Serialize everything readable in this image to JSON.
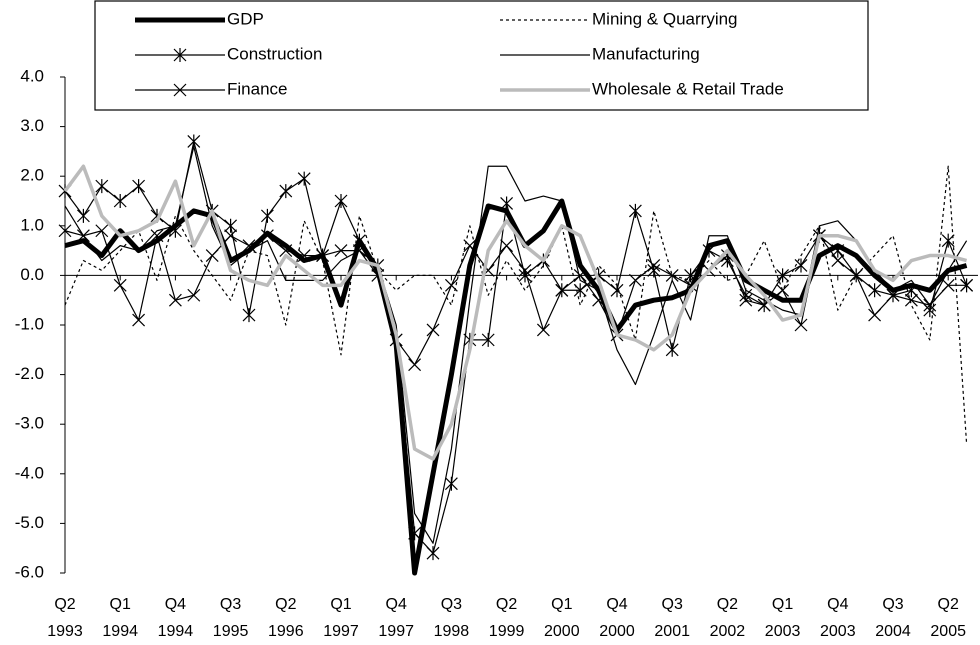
{
  "chart_data": {
    "type": "line",
    "categories": [
      "Q2 1993",
      null,
      null,
      "Q1 1994",
      null,
      null,
      "Q4 1994",
      null,
      null,
      "Q3 1995",
      null,
      null,
      "Q2 1996",
      null,
      null,
      "Q1 1997",
      null,
      null,
      "Q4 1997",
      null,
      null,
      "Q3 1998",
      null,
      null,
      "Q2 1999",
      null,
      null,
      "Q1 2000",
      null,
      null,
      "Q4 2000",
      null,
      null,
      "Q3 2001",
      null,
      null,
      "Q2 2002",
      null,
      null,
      "Q1 2003",
      null,
      null,
      "Q4 2003",
      null,
      null,
      "Q3 2004",
      null,
      null,
      "Q2 2005",
      null
    ],
    "ylim": [
      -6,
      4
    ],
    "yticks": [
      {
        "value": -6,
        "label": "-6.0"
      },
      {
        "value": -5,
        "label": "-5.0"
      },
      {
        "value": -4,
        "label": "-4.0"
      },
      {
        "value": -3,
        "label": "-3.0"
      },
      {
        "value": -2,
        "label": "-2.0"
      },
      {
        "value": -1,
        "label": "-1.0"
      },
      {
        "value": 0,
        "label": "0.0"
      },
      {
        "value": 1,
        "label": "1.0"
      },
      {
        "value": 2,
        "label": "2.0"
      },
      {
        "value": 3,
        "label": "3.0"
      },
      {
        "value": 4,
        "label": "4.0"
      }
    ],
    "series": [
      {
        "name": "GDP",
        "color": "#000000",
        "line_width": 5,
        "values": [
          0.6,
          0.7,
          0.4,
          0.9,
          0.5,
          0.7,
          1.0,
          1.3,
          1.2,
          0.3,
          0.5,
          0.85,
          0.6,
          0.3,
          0.4,
          -0.6,
          0.7,
          0.1,
          -1.4,
          -6.0,
          -4.0,
          -2.0,
          0.2,
          1.4,
          1.3,
          0.6,
          0.9,
          1.5,
          0.2,
          -0.3,
          -1.1,
          -0.6,
          -0.5,
          -0.45,
          -0.3,
          0.6,
          0.7,
          -0.1,
          -0.3,
          -0.5,
          -0.5,
          0.4,
          0.6,
          0.4,
          0.0,
          -0.3,
          -0.2,
          -0.3,
          0.1,
          0.2
        ]
      },
      {
        "name": "Mining & Quarrying",
        "color": "#000000",
        "line_width": 1.2,
        "dash": true,
        "values": [
          -0.6,
          0.3,
          0.1,
          0.5,
          0.9,
          -0.1,
          1.2,
          0.5,
          0.0,
          -0.5,
          0.5,
          0.4,
          -1.0,
          1.1,
          0.3,
          -1.6,
          1.2,
          0.1,
          -0.3,
          0.0,
          0.0,
          -0.6,
          1.0,
          -0.4,
          0.3,
          -0.3,
          0.2,
          1.0,
          -0.6,
          0.2,
          -0.2,
          -1.3,
          1.3,
          0.0,
          -0.1,
          0.3,
          -0.1,
          0.0,
          0.7,
          -0.3,
          0.4,
          1.0,
          -0.7,
          0.0,
          0.4,
          0.8,
          -0.6,
          -1.3,
          2.2,
          -3.4
        ]
      },
      {
        "name": "Construction",
        "color": "#000000",
        "line_width": 1.2,
        "marker": "asterisk",
        "values": [
          1.7,
          1.2,
          1.8,
          1.5,
          1.8,
          1.2,
          0.9,
          2.7,
          1.3,
          1.0,
          -0.8,
          1.2,
          1.7,
          1.95,
          0.4,
          1.5,
          0.7,
          0.2,
          -1.3,
          -5.2,
          -5.6,
          -4.2,
          -1.3,
          -1.3,
          1.45,
          0.0,
          0.3,
          -0.3,
          -0.3,
          0.0,
          -0.3,
          1.3,
          0.1,
          -1.5,
          0.0,
          0.5,
          0.3,
          -0.4,
          -0.6,
          0.0,
          0.2,
          0.8,
          0.5,
          0.0,
          -0.3,
          -0.4,
          -0.3,
          -0.7,
          0.7,
          -0.2
        ]
      },
      {
        "name": "Manufacturing",
        "color": "#000000",
        "line_width": 1.2,
        "values": [
          1.4,
          0.8,
          0.3,
          0.6,
          0.5,
          0.9,
          1.0,
          2.6,
          1.0,
          0.2,
          0.5,
          0.7,
          -0.1,
          -0.1,
          -0.1,
          0.3,
          0.5,
          0.2,
          -1.0,
          -4.8,
          -5.4,
          -3.5,
          -0.5,
          2.2,
          2.2,
          1.5,
          1.6,
          1.5,
          -0.1,
          -0.3,
          -1.5,
          -2.2,
          -1.2,
          -0.1,
          -0.9,
          0.8,
          0.8,
          -0.3,
          -0.5,
          -0.7,
          -0.8,
          1.0,
          1.1,
          0.7,
          0.1,
          -0.3,
          -0.1,
          -0.6,
          0.1,
          0.7
        ]
      },
      {
        "name": "Finance",
        "color": "#000000",
        "line_width": 1.2,
        "marker": "x",
        "values": [
          0.9,
          0.8,
          0.9,
          -0.2,
          -0.9,
          0.8,
          -0.5,
          -0.4,
          0.4,
          0.8,
          0.6,
          0.8,
          0.5,
          0.4,
          0.4,
          0.5,
          0.5,
          0.0,
          -1.3,
          -1.8,
          -1.1,
          -0.2,
          0.6,
          0.1,
          0.6,
          0.1,
          -1.1,
          -0.3,
          0.0,
          -0.5,
          -1.2,
          -0.1,
          0.2,
          0.0,
          -0.2,
          0.1,
          0.4,
          -0.5,
          -0.6,
          -0.3,
          -1.0,
          0.8,
          0.3,
          0.0,
          -0.8,
          -0.4,
          -0.5,
          -0.6,
          -0.2,
          -0.2
        ]
      },
      {
        "name": "Wholesale & Retail Trade",
        "color": "#bbbbbb",
        "line_width": 3.5,
        "values": [
          1.7,
          2.2,
          1.2,
          0.8,
          0.9,
          1.1,
          1.9,
          0.6,
          1.3,
          0.1,
          -0.1,
          -0.2,
          0.4,
          0.1,
          -0.2,
          -0.2,
          0.3,
          0.2,
          -1.2,
          -3.5,
          -3.7,
          -3.0,
          -1.5,
          0.5,
          1.1,
          0.6,
          0.3,
          1.0,
          0.8,
          -0.1,
          -1.2,
          -1.3,
          -1.5,
          -1.2,
          -0.3,
          0.1,
          0.5,
          0.0,
          -0.4,
          -0.9,
          -0.8,
          0.8,
          0.8,
          0.7,
          0.1,
          -0.1,
          0.3,
          0.4,
          0.4,
          0.3
        ]
      }
    ]
  }
}
